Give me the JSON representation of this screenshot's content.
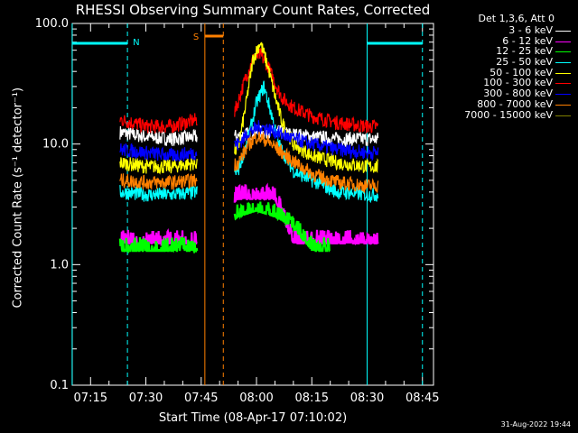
{
  "title": "RHESSI Observing Summary Count Rates, Corrected",
  "timestamp": "31-Aug-2022 19:44",
  "chart_data": {
    "type": "line",
    "title": "RHESSI Observing Summary Count Rates, Corrected",
    "xlabel": "Start Time (08-Apr-17 07:10:02)",
    "ylabel": "Corrected Count Rate (s⁻¹ detector⁻¹)",
    "yscale": "log",
    "ylim": [
      0.1,
      100.0
    ],
    "xlim": [
      "07:10:02",
      "08:48:00"
    ],
    "y_ticks": [
      "100.0",
      "10.0",
      "1.0",
      "0.1"
    ],
    "x_ticks": [
      "07:15",
      "07:30",
      "07:45",
      "08:00",
      "08:15",
      "08:30",
      "08:45"
    ],
    "legend": {
      "header": "Det 1,3,6, Att 0",
      "position": "outside-top-right",
      "entries": [
        {
          "label": "3 - 6 keV",
          "color": "#ffffff"
        },
        {
          "label": "6 - 12 keV",
          "color": "#ff00ff"
        },
        {
          "label": "12 - 25 keV",
          "color": "#00ff00"
        },
        {
          "label": "25 - 50 keV",
          "color": "#00ffff"
        },
        {
          "label": "50 - 100 keV",
          "color": "#ffff00"
        },
        {
          "label": "100 - 300 keV",
          "color": "#ff0000"
        },
        {
          "label": "300 - 800 keV",
          "color": "#0000ff"
        },
        {
          "label": "800 - 7000 keV",
          "color": "#ff8000"
        },
        {
          "label": "7000 - 15000 keV",
          "color": "#808000"
        }
      ]
    },
    "markers": [
      {
        "label": "N",
        "color": "#00ffff",
        "segments": [
          [
            "07:10",
            "07:25"
          ],
          [
            "08:30",
            "08:45"
          ]
        ],
        "dashed_at": [
          "07:25",
          "08:45"
        ],
        "solid_at": [
          "07:10",
          "08:30"
        ]
      },
      {
        "label": "S",
        "color": "#ff8000",
        "segment": [
          "07:46",
          "07:51"
        ],
        "solid_at": [
          "07:46"
        ],
        "dashed_at": [
          "07:51"
        ]
      }
    ],
    "data_gaps": [
      [
        "07:44",
        "07:54"
      ]
    ],
    "series": [
      {
        "name": "3 - 6 keV",
        "color": "#ffffff",
        "x": [
          "07:23",
          "07:30",
          "07:37",
          "07:44",
          "07:54",
          "07:57",
          "08:00",
          "08:03",
          "08:06",
          "08:10",
          "08:15",
          "08:22",
          "08:30",
          "08:33"
        ],
        "y": [
          12.5,
          11.5,
          11.0,
          11.5,
          11.5,
          12.0,
          12.5,
          12.5,
          12.5,
          12.0,
          11.5,
          11.0,
          11.0,
          11.0
        ]
      },
      {
        "name": "100 - 300 keV",
        "color": "#ff0000",
        "x": [
          "07:23",
          "07:30",
          "07:37",
          "07:44",
          "07:54",
          "07:57",
          "07:59",
          "08:01",
          "08:03",
          "08:05",
          "08:07",
          "08:10",
          "08:15",
          "08:22",
          "08:30",
          "08:33"
        ],
        "y": [
          16.0,
          14.0,
          14.0,
          16.0,
          18.0,
          35.0,
          50.0,
          55.0,
          45.0,
          32.0,
          24.0,
          20.0,
          17.0,
          15.0,
          14.0,
          14.0
        ]
      },
      {
        "name": "50 - 100 keV",
        "color": "#ffff00",
        "x": [
          "07:23",
          "07:30",
          "07:37",
          "07:44",
          "07:55",
          "07:57",
          "07:59",
          "08:01",
          "08:03",
          "08:05",
          "08:07",
          "08:10",
          "08:15",
          "08:22",
          "08:30",
          "08:33"
        ],
        "y": [
          7.0,
          6.5,
          6.5,
          7.0,
          9.0,
          20.0,
          50.0,
          70.0,
          45.0,
          25.0,
          15.0,
          10.0,
          8.0,
          7.0,
          6.5,
          6.5
        ]
      },
      {
        "name": "25 - 50 keV",
        "color": "#00ffff",
        "x": [
          "07:23",
          "07:30",
          "07:37",
          "07:44",
          "07:55",
          "07:58",
          "08:00",
          "08:02",
          "08:04",
          "08:06",
          "08:10",
          "08:15",
          "08:22",
          "08:30",
          "08:33"
        ],
        "y": [
          4.0,
          3.8,
          3.8,
          4.0,
          6.0,
          12.0,
          22.0,
          30.0,
          18.0,
          10.0,
          6.0,
          5.0,
          4.0,
          3.8,
          3.8
        ]
      },
      {
        "name": "300 - 800 keV",
        "color": "#0000ff",
        "x": [
          "07:23",
          "07:30",
          "07:37",
          "07:44",
          "07:55",
          "07:58",
          "08:01",
          "08:04",
          "08:07",
          "08:10",
          "08:15",
          "08:22",
          "08:30",
          "08:33"
        ],
        "y": [
          9.0,
          8.5,
          8.0,
          8.5,
          10.0,
          12.5,
          14.0,
          13.0,
          12.0,
          11.0,
          10.0,
          9.0,
          8.5,
          8.5
        ]
      },
      {
        "name": "800 - 7000 keV",
        "color": "#ff8000",
        "x": [
          "07:23",
          "07:30",
          "07:37",
          "07:44",
          "07:55",
          "07:58",
          "08:00",
          "08:02",
          "08:05",
          "08:08",
          "08:12",
          "08:16",
          "08:22",
          "08:30",
          "08:33"
        ],
        "y": [
          5.0,
          4.8,
          4.8,
          5.0,
          7.0,
          10.0,
          11.5,
          11.0,
          9.5,
          8.0,
          6.5,
          5.5,
          4.8,
          4.5,
          4.5
        ]
      },
      {
        "name": "6 - 12 keV",
        "color": "#ff00ff",
        "x": [
          "07:23",
          "07:30",
          "07:37",
          "07:44",
          "07:55",
          "08:00",
          "08:05",
          "08:10",
          "08:15",
          "08:22",
          "08:30",
          "08:33"
        ],
        "y": [
          1.5,
          1.5,
          1.5,
          1.5,
          3.5,
          3.5,
          3.5,
          1.5,
          1.5,
          1.5,
          1.5,
          1.5
        ]
      },
      {
        "name": "12 - 25 keV",
        "color": "#00ff00",
        "x": [
          "07:23",
          "07:30",
          "07:37",
          "07:44",
          "07:55",
          "08:00",
          "08:05",
          "08:10",
          "08:15",
          "08:20"
        ],
        "y": [
          1.3,
          1.3,
          1.3,
          1.3,
          2.5,
          2.8,
          2.5,
          2.0,
          1.3,
          1.3
        ]
      }
    ]
  }
}
